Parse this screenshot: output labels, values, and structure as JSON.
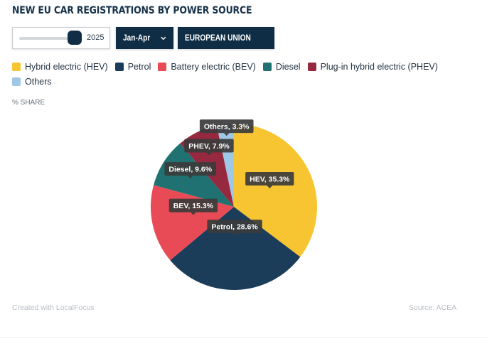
{
  "header": {
    "title": "NEW EU CAR REGISTRATIONS BY POWER SOURCE"
  },
  "controls": {
    "year_slider": {
      "value": "2025"
    },
    "period_dropdown": {
      "label": "Jan-Apr",
      "icon": "chevron-down-icon"
    },
    "region_dropdown": {
      "label": "EUROPEAN UNION",
      "icon": "chevron-down-icon"
    }
  },
  "colors": {
    "brand_dark": "#0f2d45",
    "hev": "#f7c531",
    "petrol": "#1c3d5a",
    "bev": "#e84b55",
    "diesel": "#1f7271",
    "phev": "#96293f",
    "others": "#9ec8e6"
  },
  "chart_data": {
    "type": "pie",
    "title": "NEW EU CAR REGISTRATIONS BY POWER SOURCE",
    "ylabel": "% SHARE",
    "legend_position": "top",
    "legend": [
      {
        "name": "Hybrid electric (HEV)",
        "color": "#f7c531"
      },
      {
        "name": "Petrol",
        "color": "#1c3d5a"
      },
      {
        "name": "Battery electric (BEV)",
        "color": "#e84b55"
      },
      {
        "name": "Diesel",
        "color": "#1f7271"
      },
      {
        "name": "Plug-in hybrid electric (PHEV)",
        "color": "#96293f"
      },
      {
        "name": "Others",
        "color": "#9ec8e6"
      }
    ],
    "slices": [
      {
        "name": "Hybrid electric (HEV)",
        "label": "HEV, 35.3%",
        "value": 35.3,
        "color": "#f7c531"
      },
      {
        "name": "Petrol",
        "label": "Petrol, 28.6%",
        "value": 28.6,
        "color": "#1c3d5a"
      },
      {
        "name": "Battery electric (BEV)",
        "label": "BEV, 15.3%",
        "value": 15.3,
        "color": "#e84b55"
      },
      {
        "name": "Diesel",
        "label": "Diesel, 9.6%",
        "value": 9.6,
        "color": "#1f7271"
      },
      {
        "name": "Plug-in hybrid electric (PHEV)",
        "label": "PHEV, 7.9%",
        "value": 7.9,
        "color": "#96293f"
      },
      {
        "name": "Others",
        "label": "Others, 3.3%",
        "value": 3.3,
        "color": "#9ec8e6"
      }
    ]
  },
  "footer": {
    "credit": "Created with LocalFocus",
    "source": "Source:  ACEA"
  }
}
